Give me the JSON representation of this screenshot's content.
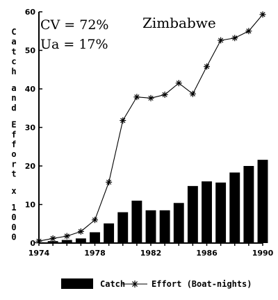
{
  "chart_data": {
    "type": "bar",
    "title": "Zimbabwe",
    "annotations": [
      "CV = 72%",
      "Ua = 17%"
    ],
    "ylabel": "Catch and Effort x 1000",
    "xlabel": "",
    "x": [
      1974,
      1975,
      1976,
      1977,
      1978,
      1979,
      1980,
      1981,
      1982,
      1983,
      1984,
      1985,
      1986,
      1987,
      1988,
      1989,
      1990
    ],
    "xticks": [
      "1974",
      "1978",
      "1982",
      "1986",
      "1990"
    ],
    "yticks": [
      "0",
      "10",
      "20",
      "30",
      "40",
      "50",
      "60"
    ],
    "ylim": [
      0,
      60
    ],
    "xlim": [
      1974,
      1990
    ],
    "series": [
      {
        "name": "Catch",
        "type": "bar",
        "values": [
          0.2,
          0.5,
          0.8,
          1.2,
          2.8,
          5.1,
          8.0,
          11.0,
          8.5,
          8.5,
          10.4,
          14.8,
          16.0,
          15.7,
          18.3,
          20.0,
          21.6
        ]
      },
      {
        "name": "Effort (Boat-nights)",
        "type": "line",
        "marker": "asterisk",
        "values": [
          0.5,
          1.2,
          1.8,
          3.0,
          6.0,
          15.8,
          31.8,
          37.9,
          37.6,
          38.5,
          41.5,
          38.7,
          45.8,
          52.6,
          53.2,
          55.0,
          59.3
        ]
      }
    ],
    "legend": {
      "position": "bottom"
    }
  }
}
